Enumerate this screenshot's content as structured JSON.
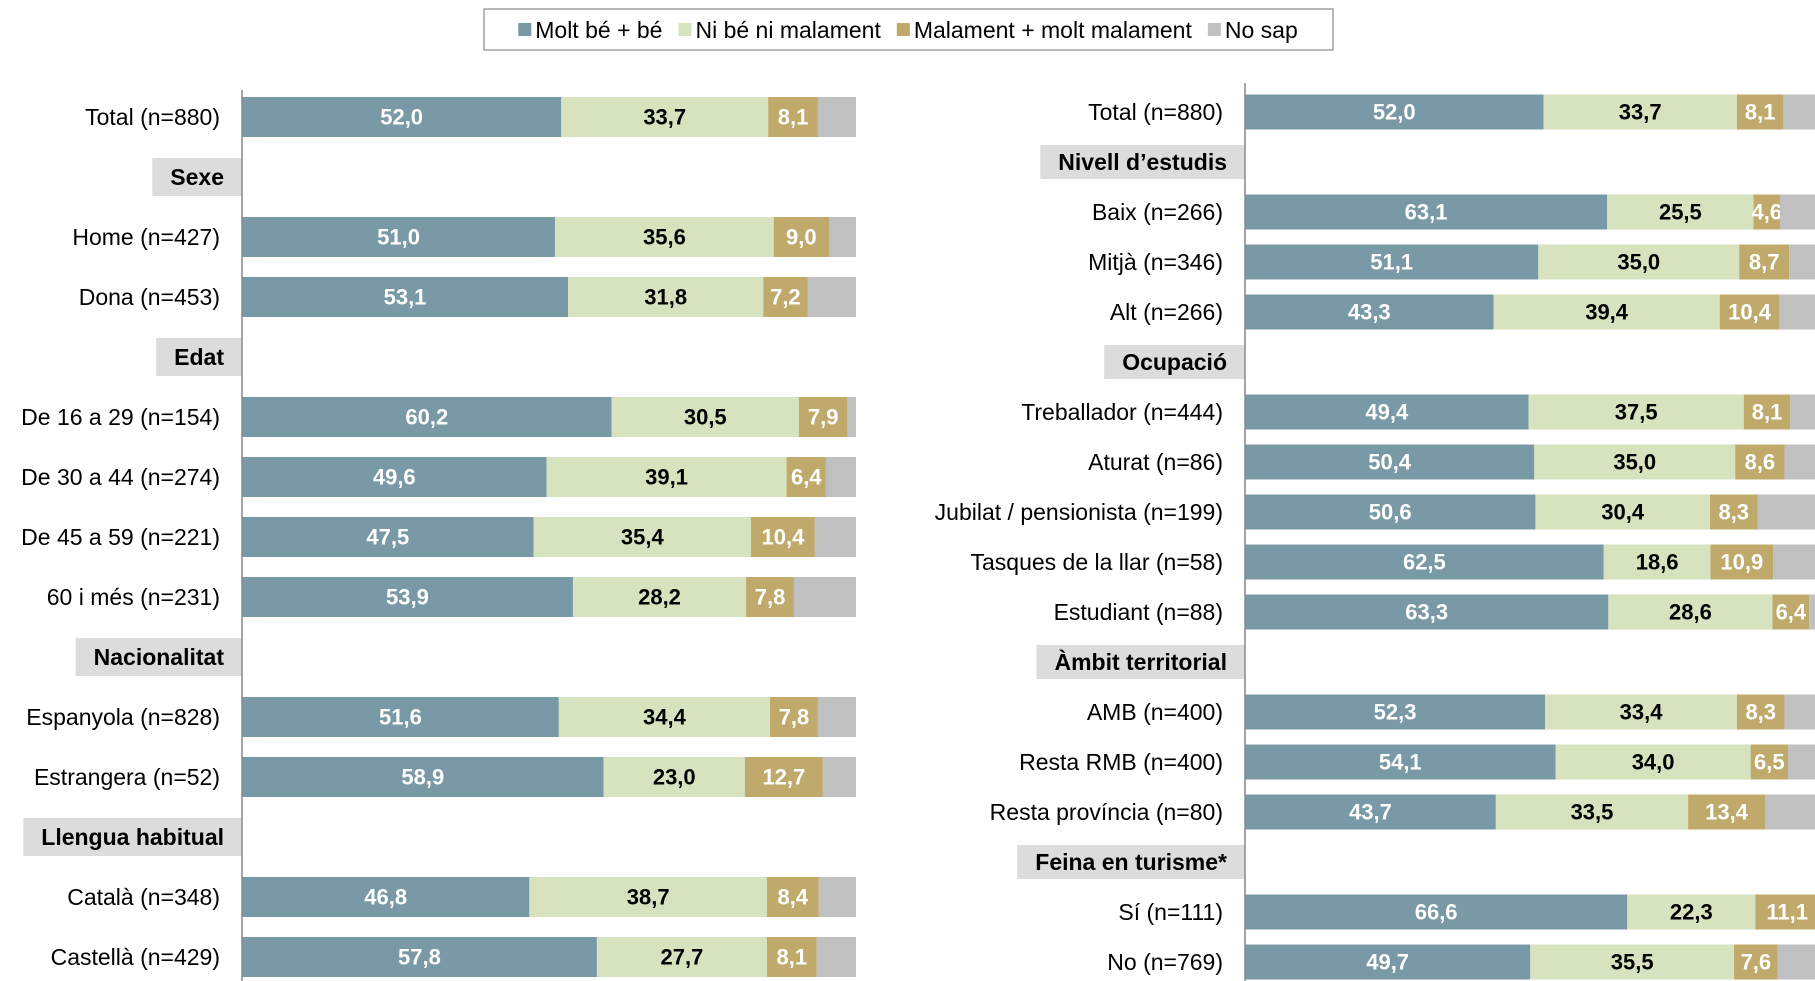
{
  "chart_data": [
    {
      "type": "bar",
      "orientation": "horizontal",
      "stacked": true,
      "legend": "top",
      "xlim": [
        0,
        100
      ],
      "categories": [
        "Total (n=880)",
        "Sexe",
        "Home (n=427)",
        "Dona (n=453)",
        "Edat",
        "De 16 a 29 (n=154)",
        "De 30 a 44 (n=274)",
        "De 45 a 59 (n=221)",
        "60 i més (n=231)",
        "Nacionalitat",
        "Espanyola (n=828)",
        "Estrangera (n=52)",
        "Llengua habitual",
        "Català (n=348)",
        "Castellà (n=429)"
      ],
      "series": [
        {
          "name": "Molt bé + bé",
          "color": "#7899a5",
          "values": [
            52.0,
            null,
            51.0,
            53.1,
            null,
            60.2,
            49.6,
            47.5,
            53.9,
            null,
            51.6,
            58.9,
            null,
            46.8,
            57.8
          ],
          "value_labels": [
            "52,0",
            null,
            "51,0",
            "53,1",
            null,
            "60,2",
            "49,6",
            "47,5",
            "53,9",
            null,
            "51,6",
            "58,9",
            null,
            "46,8",
            "57,8"
          ]
        },
        {
          "name": "Ni bé ni malament",
          "color": "#d7e2bf",
          "values": [
            33.7,
            null,
            35.6,
            31.8,
            null,
            30.5,
            39.1,
            35.4,
            28.2,
            null,
            34.4,
            23.0,
            null,
            38.7,
            27.7
          ],
          "value_labels": [
            "33,7",
            null,
            "35,6",
            "31,8",
            null,
            "30,5",
            "39,1",
            "35,4",
            "28,2",
            null,
            "34,4",
            "23,0",
            null,
            "38,7",
            "27,7"
          ]
        },
        {
          "name": "Malament + molt malament",
          "color": "#c0aa6b",
          "values": [
            8.1,
            null,
            9.0,
            7.2,
            null,
            7.9,
            6.4,
            10.4,
            7.8,
            null,
            7.8,
            12.7,
            null,
            8.4,
            8.1
          ],
          "value_labels": [
            "8,1",
            null,
            "9,0",
            "7,2",
            null,
            "7,9",
            "6,4",
            "10,4",
            "7,8",
            null,
            "7,8",
            "12,7",
            null,
            "8,4",
            "8,1"
          ]
        },
        {
          "name": "No sap",
          "color": "#c0c0c0",
          "values": [
            6.2,
            null,
            4.4,
            7.9,
            null,
            1.4,
            4.9,
            6.7,
            10.1,
            null,
            6.2,
            5.4,
            null,
            6.1,
            6.4
          ]
        }
      ]
    },
    {
      "type": "bar",
      "orientation": "horizontal",
      "stacked": true,
      "xlim": [
        0,
        100
      ],
      "categories": [
        "Total (n=880)",
        "Nivell d’estudis",
        "Baix (n=266)",
        "Mitjà (n=346)",
        "Alt (n=266)",
        "Ocupació",
        "Treballador (n=444)",
        "Aturat (n=86)",
        "Jubilat / pensionista (n=199)",
        "Tasques de la llar (n=58)",
        "Estudiant (n=88)",
        "Àmbit territorial",
        "AMB (n=400)",
        "Resta RMB (n=400)",
        "Resta província (n=80)",
        "Feina en turisme*",
        "Sí (n=111)",
        "No (n=769)"
      ],
      "series": [
        {
          "values": [
            52.0,
            null,
            63.1,
            51.1,
            43.3,
            null,
            49.4,
            50.4,
            50.6,
            62.5,
            63.3,
            null,
            52.3,
            54.1,
            43.7,
            null,
            66.6,
            49.7
          ],
          "value_labels": [
            "52,0",
            null,
            "63,1",
            "51,1",
            "43,3",
            null,
            "49,4",
            "50,4",
            "50,6",
            "62,5",
            "63,3",
            null,
            "52,3",
            "54,1",
            "43,7",
            null,
            "66,6",
            "49,7"
          ]
        },
        {
          "values": [
            33.7,
            null,
            25.5,
            35.0,
            39.4,
            null,
            37.5,
            35.0,
            30.4,
            18.6,
            28.6,
            null,
            33.4,
            34.0,
            33.5,
            null,
            22.3,
            35.5
          ],
          "value_labels": [
            "33,7",
            null,
            "25,5",
            "35,0",
            "39,4",
            null,
            "37,5",
            "35,0",
            "30,4",
            "18,6",
            "28,6",
            null,
            "33,4",
            "34,0",
            "33,5",
            null,
            "22,3",
            "35,5"
          ]
        },
        {
          "values": [
            8.1,
            null,
            4.6,
            8.7,
            10.4,
            null,
            8.1,
            8.6,
            8.3,
            10.9,
            6.4,
            null,
            8.3,
            6.5,
            13.4,
            null,
            11.1,
            7.6
          ],
          "value_labels": [
            "8,1",
            null,
            "4,6",
            "8,7",
            "10,4",
            null,
            "8,1",
            "8,6",
            "8,3",
            "10,9",
            "6,4",
            null,
            "8,3",
            "6,5",
            "13,4",
            null,
            "11,1",
            "7,6"
          ]
        },
        {
          "values": [
            6.2,
            null,
            6.8,
            5.2,
            6.9,
            null,
            5.0,
            6.0,
            10.7,
            8.0,
            1.7,
            null,
            6.0,
            5.4,
            9.4,
            null,
            0.0,
            7.2
          ]
        }
      ]
    }
  ]
}
